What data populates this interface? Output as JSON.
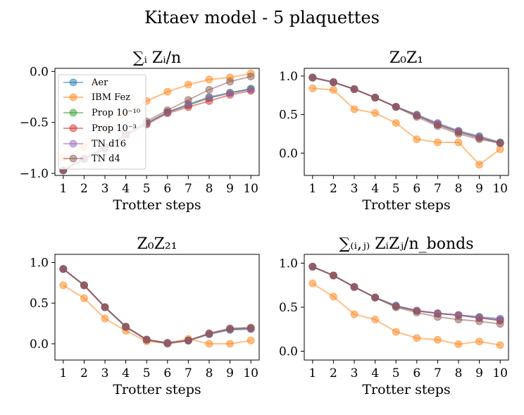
{
  "figure": {
    "title": "Kitaev model - 5 plaquettes"
  },
  "legend": {
    "placement": "upper-left of first panel",
    "entries": [
      "Aer",
      "IBM Fez",
      "Prop 10⁻¹⁰",
      "Prop 10⁻³",
      "TN d16",
      "TN d4"
    ]
  },
  "series_style": [
    {
      "name": "Aer",
      "color": "#1f77b4"
    },
    {
      "name": "IBM Fez",
      "color": "#ff7f0e"
    },
    {
      "name": "Prop 10⁻¹⁰",
      "color": "#2ca02c"
    },
    {
      "name": "Prop 10⁻³",
      "color": "#d62728"
    },
    {
      "name": "TN d16",
      "color": "#9467bd"
    },
    {
      "name": "TN d4",
      "color": "#8c564b"
    }
  ],
  "chart_data": [
    {
      "type": "line",
      "title": "∑ᵢ Zᵢ/n",
      "xlabel": "Trotter steps",
      "ylabel": "",
      "x": [
        1,
        2,
        3,
        4,
        5,
        6,
        7,
        8,
        9,
        10
      ],
      "xticks": [
        "1",
        "2",
        "3",
        "4",
        "5",
        "6",
        "7",
        "8",
        "9",
        "10"
      ],
      "ylim": [
        -1.02,
        0.03
      ],
      "yticks": [
        -1.0,
        -0.5,
        0.0
      ],
      "ytick_labels": [
        "−1.0",
        "−0.5",
        "0.0"
      ],
      "grid": false,
      "series": [
        {
          "name": "Aer",
          "values": [
            -0.97,
            -0.86,
            -0.75,
            -0.62,
            -0.51,
            -0.4,
            -0.33,
            -0.26,
            -0.21,
            -0.17
          ]
        },
        {
          "name": "IBM Fez",
          "values": [
            -0.85,
            -0.74,
            -0.55,
            -0.41,
            -0.29,
            -0.2,
            -0.13,
            -0.08,
            -0.06,
            -0.02
          ]
        },
        {
          "name": "Prop 10⁻¹⁰",
          "values": [
            -0.97,
            -0.86,
            -0.75,
            -0.62,
            -0.51,
            -0.4,
            -0.33,
            -0.26,
            -0.21,
            -0.17
          ]
        },
        {
          "name": "Prop 10⁻³",
          "values": [
            -0.97,
            -0.86,
            -0.76,
            -0.63,
            -0.52,
            -0.41,
            -0.35,
            -0.29,
            -0.23,
            -0.19
          ]
        },
        {
          "name": "TN d16",
          "values": [
            -0.97,
            -0.86,
            -0.75,
            -0.62,
            -0.51,
            -0.4,
            -0.32,
            -0.25,
            -0.21,
            -0.18
          ]
        },
        {
          "name": "TN d4",
          "values": [
            -0.97,
            -0.85,
            -0.74,
            -0.61,
            -0.49,
            -0.38,
            -0.28,
            -0.18,
            -0.1,
            -0.05
          ]
        }
      ]
    },
    {
      "type": "line",
      "title": "Z₀Z₁",
      "xlabel": "Trotter steps",
      "ylabel": "",
      "x": [
        1,
        2,
        3,
        4,
        5,
        6,
        7,
        8,
        9,
        10
      ],
      "xticks": [
        "1",
        "2",
        "3",
        "4",
        "5",
        "6",
        "7",
        "8",
        "9",
        "10"
      ],
      "ylim": [
        -0.29,
        1.1
      ],
      "yticks": [
        0.0,
        0.5,
        1.0
      ],
      "ytick_labels": [
        "0.0",
        "0.5",
        "1.0"
      ],
      "grid": false,
      "series": [
        {
          "name": "Aer",
          "values": [
            0.98,
            0.92,
            0.83,
            0.72,
            0.6,
            0.5,
            0.39,
            0.29,
            0.22,
            0.14
          ]
        },
        {
          "name": "IBM Fez",
          "values": [
            0.84,
            0.82,
            0.57,
            0.52,
            0.39,
            0.18,
            0.14,
            0.14,
            -0.15,
            0.05
          ]
        },
        {
          "name": "Prop 10⁻¹⁰",
          "values": [
            0.98,
            0.92,
            0.83,
            0.72,
            0.6,
            0.49,
            0.37,
            0.27,
            0.2,
            0.13
          ]
        },
        {
          "name": "Prop 10⁻³",
          "values": [
            0.98,
            0.92,
            0.83,
            0.72,
            0.6,
            0.49,
            0.37,
            0.28,
            0.2,
            0.13
          ]
        },
        {
          "name": "TN d16",
          "values": [
            0.98,
            0.92,
            0.83,
            0.72,
            0.6,
            0.49,
            0.38,
            0.28,
            0.21,
            0.13
          ]
        },
        {
          "name": "TN d4",
          "values": [
            0.98,
            0.92,
            0.83,
            0.72,
            0.6,
            0.47,
            0.35,
            0.25,
            0.18,
            0.13
          ]
        }
      ]
    },
    {
      "type": "line",
      "title": "Z₀Z₂₁",
      "xlabel": "Trotter steps",
      "ylabel": "",
      "x": [
        1,
        2,
        3,
        4,
        5,
        6,
        7,
        8,
        9,
        10
      ],
      "xticks": [
        "1",
        "2",
        "3",
        "4",
        "5",
        "6",
        "7",
        "8",
        "9",
        "10"
      ],
      "ylim": [
        -0.2,
        1.1
      ],
      "yticks": [
        0.0,
        0.5,
        1.0
      ],
      "ytick_labels": [
        "0.0",
        "0.5",
        "1.0"
      ],
      "grid": false,
      "series": [
        {
          "name": "Aer",
          "values": [
            0.92,
            0.72,
            0.45,
            0.21,
            0.05,
            0.01,
            0.04,
            0.12,
            0.17,
            0.18
          ]
        },
        {
          "name": "IBM Fez",
          "values": [
            0.72,
            0.56,
            0.31,
            0.16,
            0.03,
            0.01,
            0.06,
            0.0,
            0.0,
            0.04
          ]
        },
        {
          "name": "Prop 10⁻¹⁰",
          "values": [
            0.92,
            0.72,
            0.45,
            0.21,
            0.05,
            0.01,
            0.04,
            0.12,
            0.18,
            0.19
          ]
        },
        {
          "name": "Prop 10⁻³",
          "values": [
            0.92,
            0.72,
            0.45,
            0.21,
            0.05,
            0.01,
            0.04,
            0.12,
            0.18,
            0.19
          ]
        },
        {
          "name": "TN d16",
          "values": [
            0.92,
            0.72,
            0.45,
            0.21,
            0.05,
            0.01,
            0.04,
            0.12,
            0.18,
            0.19
          ]
        },
        {
          "name": "TN d4",
          "values": [
            0.92,
            0.72,
            0.45,
            0.21,
            0.05,
            0.0,
            0.04,
            0.13,
            0.19,
            0.2
          ]
        }
      ]
    },
    {
      "type": "line",
      "title": "∑₍ᵢ,ⱼ₎ ZᵢZⱼ/n_bonds",
      "xlabel": "Trotter steps",
      "ylabel": "",
      "x": [
        1,
        2,
        3,
        4,
        5,
        6,
        7,
        8,
        9,
        10
      ],
      "xticks": [
        "1",
        "2",
        "3",
        "4",
        "5",
        "6",
        "7",
        "8",
        "9",
        "10"
      ],
      "ylim": [
        -0.1,
        1.1
      ],
      "yticks": [
        0.0,
        0.5,
        1.0
      ],
      "ytick_labels": [
        "0.0",
        "0.5",
        "1.0"
      ],
      "grid": false,
      "series": [
        {
          "name": "Aer",
          "values": [
            0.96,
            0.86,
            0.73,
            0.61,
            0.52,
            0.46,
            0.43,
            0.41,
            0.39,
            0.37
          ]
        },
        {
          "name": "IBM Fez",
          "values": [
            0.77,
            0.62,
            0.42,
            0.36,
            0.22,
            0.15,
            0.13,
            0.08,
            0.11,
            0.07
          ]
        },
        {
          "name": "Prop 10⁻¹⁰",
          "values": [
            0.96,
            0.86,
            0.73,
            0.61,
            0.51,
            0.46,
            0.43,
            0.41,
            0.38,
            0.35
          ]
        },
        {
          "name": "Prop 10⁻³",
          "values": [
            0.96,
            0.86,
            0.73,
            0.61,
            0.51,
            0.46,
            0.43,
            0.41,
            0.38,
            0.35
          ]
        },
        {
          "name": "TN d16",
          "values": [
            0.96,
            0.86,
            0.73,
            0.61,
            0.51,
            0.46,
            0.43,
            0.41,
            0.38,
            0.36
          ]
        },
        {
          "name": "TN d4",
          "values": [
            0.96,
            0.86,
            0.73,
            0.61,
            0.5,
            0.44,
            0.39,
            0.36,
            0.34,
            0.31
          ]
        }
      ]
    }
  ]
}
